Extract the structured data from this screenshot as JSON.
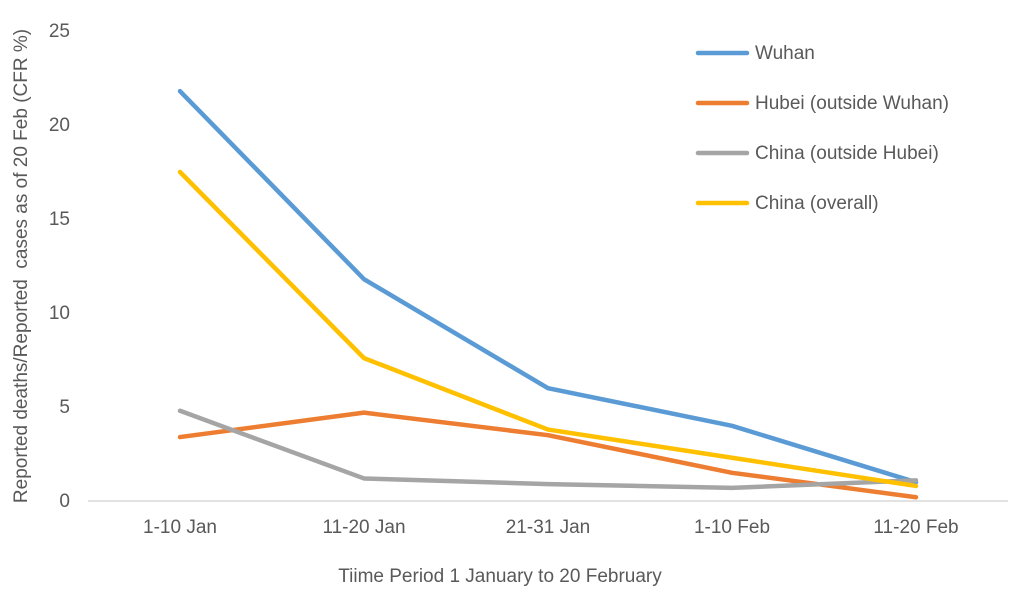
{
  "chart_data": {
    "type": "line",
    "title": "",
    "xlabel": "Tiime Period 1 January to 20 February",
    "ylabel": "Reported deaths/Reported  cases as of 20 Feb (CFR %)",
    "categories": [
      "1-10 Jan",
      "11-20 Jan",
      "21-31 Jan",
      "1-10 Feb",
      "11-20 Feb"
    ],
    "series": [
      {
        "name": "Wuhan",
        "color": "#5B9BD5",
        "values": [
          21.8,
          11.8,
          6.0,
          4.0,
          1.0
        ]
      },
      {
        "name": "Hubei (outside Wuhan)",
        "color": "#ED7D31",
        "values": [
          3.4,
          4.7,
          3.5,
          1.5,
          0.2
        ]
      },
      {
        "name": "China (outside Hubei)",
        "color": "#A5A5A5",
        "values": [
          4.8,
          1.2,
          0.9,
          0.7,
          1.1
        ]
      },
      {
        "name": "China (overall)",
        "color": "#FFC000",
        "values": [
          17.5,
          7.6,
          3.8,
          2.3,
          0.8
        ]
      }
    ],
    "y_ticks": [
      0,
      5,
      10,
      15,
      20,
      25
    ],
    "ylim": [
      0,
      25
    ],
    "grid": false,
    "legend_position": "top-right",
    "colors": {
      "text": "#595959",
      "axis_line": "#D9D9D9",
      "background": "#FFFFFF"
    }
  }
}
